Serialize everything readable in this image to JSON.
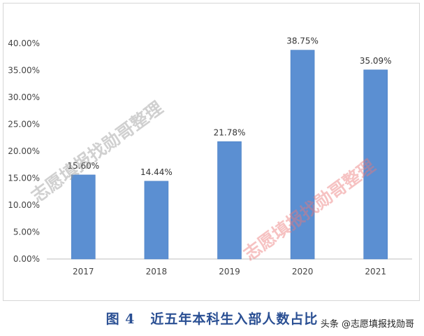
{
  "chart_data": {
    "type": "bar",
    "categories": [
      "2017",
      "2018",
      "2019",
      "2020",
      "2021"
    ],
    "values": [
      15.6,
      14.44,
      21.78,
      38.75,
      35.09
    ],
    "value_labels": [
      "15.60%",
      "14.44%",
      "21.78%",
      "38.75%",
      "35.09%"
    ],
    "ylim": [
      0,
      40
    ],
    "y_ticks": [
      "0.00%",
      "5.00%",
      "10.00%",
      "15.00%",
      "20.00%",
      "25.00%",
      "30.00%",
      "35.00%",
      "40.00%"
    ],
    "grid": false,
    "legend": "none"
  },
  "caption": {
    "figure_number": "图 4",
    "title": "近五年本科生入部人数占比"
  },
  "watermarks": [
    "志愿填报找勋哥整理",
    "志愿填报找勋哥整理"
  ],
  "source_tag": "头条 @志愿填报找勋哥",
  "colors": {
    "bar": "#5b8fd2",
    "bar_stroke": "#4a7fc4",
    "axis": "#bfbfbf",
    "caption": "#2a4f93",
    "watermark_gray": "rgba(150,150,150,0.45)",
    "watermark_red": "rgba(236,120,120,0.45)"
  }
}
